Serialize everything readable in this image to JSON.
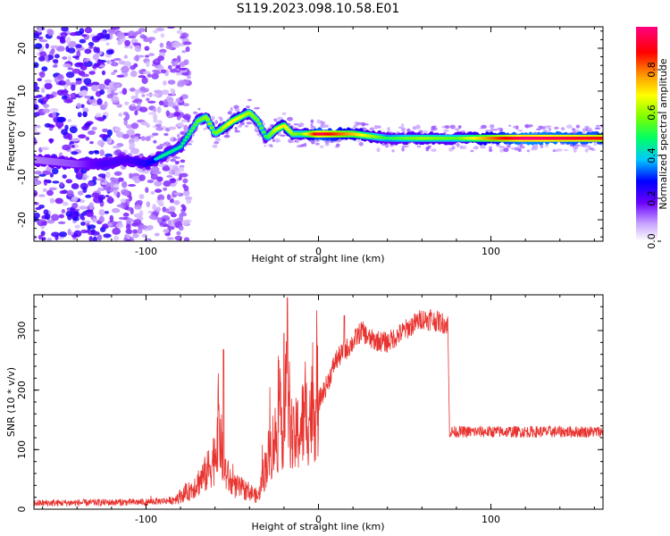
{
  "title": "S119.2023.098.10.58.E01",
  "chart_data": [
    {
      "type": "heatmap",
      "xlabel": "Height of straight line (km)",
      "ylabel": "Frequency (Hz)",
      "xlim": [
        -165,
        165
      ],
      "ylim": [
        -25,
        25
      ],
      "x_ticks": [
        -100,
        0,
        100
      ],
      "y_ticks": [
        -20,
        -10,
        0,
        10,
        20
      ],
      "colorbar": {
        "label": "Normalized spectral amplitude",
        "range": [
          0,
          1
        ],
        "ticks": [
          "0.0",
          "0.2",
          "0.4",
          "0.6",
          "0.8"
        ]
      },
      "ridge": {
        "description_x": [
          -165,
          -140,
          -125,
          -110,
          -100,
          -90,
          -80,
          -70,
          -65,
          -60,
          -50,
          -40,
          -35,
          -30,
          -25,
          -20,
          -15,
          -10,
          0,
          20,
          40,
          60,
          80,
          100,
          120,
          140,
          165
        ],
        "frequency_hz": [
          -6,
          -7,
          -7,
          -6,
          -7,
          -5,
          -3,
          3,
          4,
          0,
          3,
          5,
          3,
          -1,
          1,
          2,
          0,
          0,
          0,
          0,
          -1,
          -1,
          -1,
          -1,
          -1,
          -1,
          -1
        ],
        "amplitude": [
          0.15,
          0.2,
          0.3,
          0.3,
          0.35,
          0.45,
          0.45,
          0.55,
          0.6,
          0.55,
          0.7,
          0.6,
          0.55,
          0.5,
          0.65,
          0.7,
          0.6,
          0.55,
          0.95,
          0.75,
          0.5,
          0.6,
          0.55,
          0.8,
          1.0,
          0.95,
          0.9
        ]
      }
    },
    {
      "type": "line",
      "xlabel": "Height of straight line (km)",
      "ylabel": "SNR (10 * v/v)",
      "xlim": [
        -165,
        165
      ],
      "ylim": [
        0,
        360
      ],
      "x_ticks": [
        -100,
        0,
        100
      ],
      "y_ticks": [
        0,
        100,
        200,
        300
      ],
      "color": "#e8332f",
      "envelope_x": [
        -165,
        -100,
        -85,
        -75,
        -65,
        -60,
        -58,
        -55,
        -50,
        -40,
        -35,
        -30,
        -25,
        -20,
        -18,
        -15,
        -10,
        -5,
        0,
        5,
        10,
        20,
        25,
        30,
        40,
        50,
        60,
        70,
        75,
        76,
        80,
        100,
        120,
        140,
        165
      ],
      "envelope_snr": [
        10,
        12,
        15,
        30,
        60,
        90,
        150,
        70,
        40,
        30,
        20,
        80,
        120,
        150,
        200,
        110,
        140,
        160,
        180,
        210,
        250,
        280,
        300,
        285,
        280,
        300,
        320,
        315,
        310,
        130,
        130,
        130,
        130,
        130,
        130
      ],
      "peaks": [
        {
          "x": -55,
          "snr": 268
        },
        {
          "x": -18,
          "snr": 355
        },
        {
          "x": -20,
          "snr": 295
        },
        {
          "x": 15,
          "snr": 325
        },
        {
          "x": 65,
          "snr": 335
        }
      ]
    }
  ]
}
